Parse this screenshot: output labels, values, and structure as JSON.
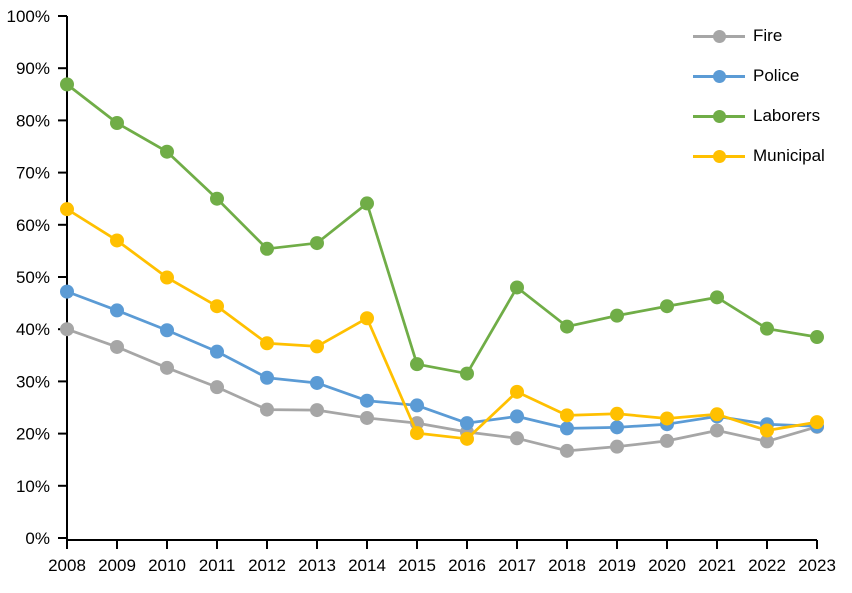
{
  "chart_data": {
    "type": "line",
    "title": "",
    "xlabel": "",
    "ylabel": "",
    "x": [
      "2008",
      "2009",
      "2010",
      "2011",
      "2012",
      "2013",
      "2014",
      "2015",
      "2016",
      "2017",
      "2018",
      "2019",
      "2020",
      "2021",
      "2022",
      "2023"
    ],
    "series": [
      {
        "name": "Fire",
        "color": "#A6A6A6",
        "values": [
          40.0,
          36.6,
          32.6,
          28.9,
          24.6,
          24.5,
          23.0,
          22.0,
          20.3,
          19.1,
          16.7,
          17.5,
          18.6,
          20.6,
          18.5,
          21.3
        ]
      },
      {
        "name": "Police",
        "color": "#5B9BD5",
        "values": [
          47.2,
          43.6,
          39.8,
          35.7,
          30.7,
          29.7,
          26.3,
          25.4,
          22.0,
          23.3,
          21.0,
          21.2,
          21.8,
          23.3,
          21.8,
          21.4
        ]
      },
      {
        "name": "Laborers",
        "color": "#70AD47",
        "values": [
          86.9,
          79.5,
          74.0,
          65.0,
          55.4,
          56.5,
          64.1,
          33.3,
          31.5,
          48.0,
          40.5,
          42.6,
          44.4,
          46.1,
          40.1,
          38.5
        ]
      },
      {
        "name": "Municipal",
        "color": "#FFC000",
        "values": [
          63.0,
          57.0,
          49.9,
          44.4,
          37.3,
          36.7,
          42.1,
          20.1,
          19.0,
          28.0,
          23.5,
          23.8,
          22.9,
          23.7,
          20.6,
          22.2
        ]
      }
    ],
    "ylim": [
      0,
      100
    ],
    "ytick_step": 10,
    "ytick_suffix": "%",
    "grid": false,
    "legend_position": "top-right",
    "axis_color": "#000000",
    "background": "#FFFFFF"
  }
}
